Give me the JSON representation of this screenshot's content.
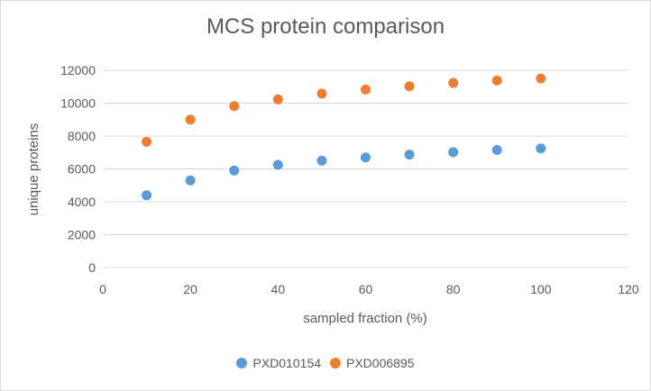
{
  "chart_data": {
    "type": "scatter",
    "title": "MCS protein comparison",
    "xlabel": "sampled fraction (%)",
    "ylabel": "unique proteins",
    "xlim": [
      0,
      120
    ],
    "ylim": [
      0,
      12000
    ],
    "xticks": [
      0,
      20,
      40,
      60,
      80,
      100,
      120
    ],
    "yticks": [
      0,
      2000,
      4000,
      6000,
      8000,
      10000,
      12000
    ],
    "grid": "horizontal",
    "legend_position": "bottom",
    "series": [
      {
        "name": "PXD010154",
        "color": "#5b9bd5",
        "x": [
          10,
          20,
          30,
          40,
          50,
          60,
          70,
          80,
          90,
          100
        ],
        "y": [
          4400,
          5300,
          5900,
          6250,
          6500,
          6700,
          6870,
          7020,
          7150,
          7250
        ]
      },
      {
        "name": "PXD006895",
        "color": "#ed7d31",
        "x": [
          10,
          20,
          30,
          40,
          50,
          60,
          70,
          80,
          90,
          100
        ],
        "y": [
          7650,
          9000,
          9820,
          10230,
          10580,
          10830,
          11030,
          11230,
          11380,
          11500
        ]
      }
    ]
  }
}
